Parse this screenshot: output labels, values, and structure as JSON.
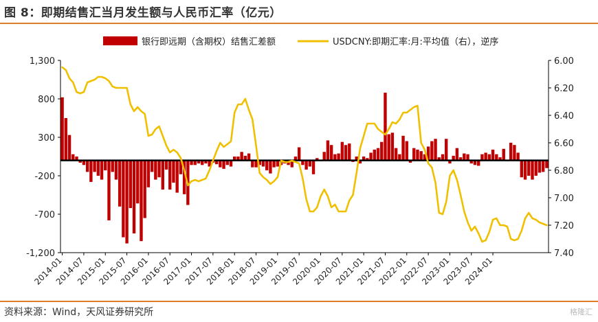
{
  "title": "图 8：即期结售汇当月发生额与人民币汇率（亿元）",
  "source": "资料来源：Wind，天风证券研究所",
  "watermark": "格隆汇",
  "colors": {
    "bar": "#c00000",
    "line": "#f0c000",
    "rule": "#e07b2a"
  },
  "chart_data": {
    "type": "bar+line",
    "legend": [
      "银行即远期（含期权）结售汇差额",
      "USDCNY:即期汇率:月:平均值（右），逆序"
    ],
    "legend_position": "top",
    "grid": false,
    "y_left": {
      "lim": [
        -1200,
        1300
      ],
      "ticks": [
        "1,300",
        "800",
        "300",
        "-200",
        "-700",
        "-1,200"
      ],
      "tick_values": [
        1300,
        800,
        300,
        -200,
        -700,
        -1200
      ]
    },
    "y_right": {
      "lim": [
        6.0,
        7.4
      ],
      "inverted": true,
      "ticks": [
        "6.00",
        "6.20",
        "6.40",
        "6.60",
        "6.80",
        "7.00",
        "7.20",
        "7.40"
      ],
      "tick_values": [
        6.0,
        6.2,
        6.4,
        6.6,
        6.8,
        7.0,
        7.2,
        7.4
      ]
    },
    "x_ticks": [
      "2014-01",
      "2014-07",
      "2015-01",
      "2015-07",
      "2016-01",
      "2016-07",
      "2017-01",
      "2017-07",
      "2018-01",
      "2018-07",
      "2019-01",
      "2019-07",
      "2020-01",
      "2020-07",
      "2021-01",
      "2021-07",
      "2022-01",
      "2022-07",
      "2023-01",
      "2023-07",
      "2024-01"
    ],
    "start_month": "2014-01",
    "series": [
      {
        "name": "银行即远期（含期权）结售汇差额",
        "type": "bar",
        "axis": "left",
        "values": [
          820,
          550,
          330,
          80,
          50,
          -30,
          -60,
          -150,
          -280,
          -150,
          -200,
          -250,
          -130,
          -780,
          -150,
          -250,
          -600,
          -1000,
          -1080,
          -620,
          -950,
          -560,
          -1050,
          -750,
          -350,
          -150,
          -250,
          -220,
          -380,
          -120,
          -380,
          -290,
          -420,
          -180,
          -440,
          -580,
          -60,
          -60,
          -40,
          -60,
          -40,
          -80,
          -30,
          -50,
          -90,
          -110,
          -60,
          -80,
          50,
          50,
          110,
          60,
          90,
          -90,
          -90,
          -60,
          -80,
          -130,
          -170,
          -90,
          -80,
          -60,
          -40,
          -60,
          -90,
          50,
          170,
          -60,
          -120,
          -80,
          -180,
          30,
          -10,
          110,
          260,
          200,
          80,
          90,
          240,
          200,
          220,
          -20,
          50,
          -40,
          50,
          30,
          100,
          140,
          160,
          240,
          880,
          340,
          360,
          160,
          80,
          320,
          250,
          -30,
          160,
          140,
          120,
          80,
          180,
          250,
          280,
          40,
          80,
          280,
          -40,
          60,
          160,
          40,
          90,
          80,
          -40,
          -60,
          -70,
          80,
          100,
          80,
          140,
          80,
          40,
          150,
          -10,
          230,
          200,
          100,
          -220,
          -250,
          -200,
          -250,
          -200,
          -160,
          -150,
          -100
        ]
      },
      {
        "name": "USDCNY:即期汇率:月:平均值（右），逆序",
        "type": "line",
        "axis": "right",
        "values": [
          6.05,
          6.07,
          6.13,
          6.16,
          6.23,
          6.24,
          6.23,
          6.16,
          6.15,
          6.14,
          6.12,
          6.12,
          6.13,
          6.15,
          6.19,
          6.2,
          6.2,
          6.2,
          6.2,
          6.32,
          6.37,
          6.34,
          6.37,
          6.39,
          6.55,
          6.54,
          6.5,
          6.48,
          6.55,
          6.62,
          6.67,
          6.65,
          6.67,
          6.71,
          6.8,
          6.91,
          6.88,
          6.87,
          6.88,
          6.87,
          6.86,
          6.8,
          6.73,
          6.66,
          6.6,
          6.63,
          6.61,
          6.59,
          6.38,
          6.32,
          6.32,
          6.28,
          6.36,
          6.43,
          6.62,
          6.82,
          6.85,
          6.87,
          6.9,
          6.88,
          6.85,
          6.73,
          6.74,
          6.74,
          6.73,
          6.74,
          6.75,
          6.86,
          7.01,
          7.1,
          7.1,
          7.07,
          6.99,
          6.94,
          6.99,
          7.07,
          7.05,
          7.1,
          7.1,
          7.1,
          7.02,
          6.98,
          6.82,
          6.64,
          6.55,
          6.46,
          6.46,
          6.46,
          6.5,
          6.52,
          6.54,
          6.5,
          6.45,
          6.46,
          6.43,
          6.38,
          6.38,
          6.36,
          6.34,
          6.33,
          6.6,
          6.65,
          6.75,
          6.78,
          6.89,
          7.11,
          7.12,
          7.03,
          6.84,
          6.8,
          6.87,
          6.98,
          7.1,
          7.18,
          7.24,
          7.21,
          7.26,
          7.32,
          7.31,
          7.25,
          7.16,
          7.15,
          7.2,
          7.2,
          7.21,
          7.3,
          7.31,
          7.3,
          7.24,
          7.15,
          7.11,
          7.15,
          7.16,
          7.18,
          7.19,
          7.2
        ]
      }
    ]
  }
}
